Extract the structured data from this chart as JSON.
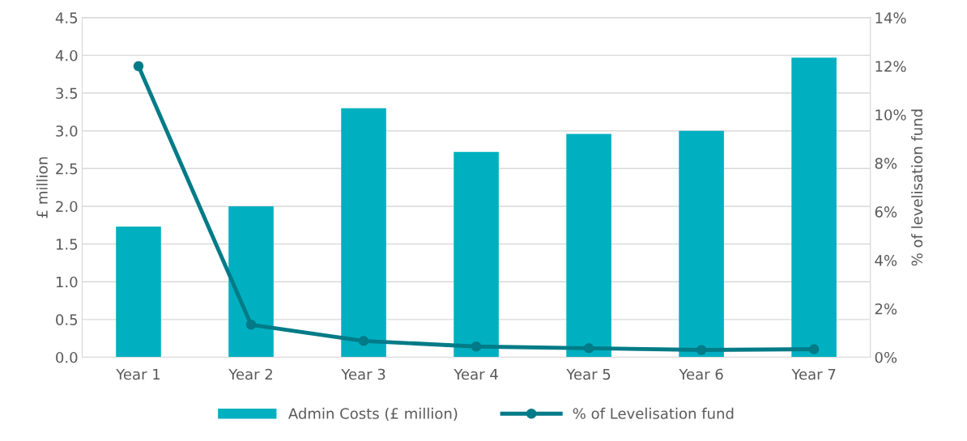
{
  "chart_data": {
    "type": "bar",
    "categories": [
      "Year 1",
      "Year 2",
      "Year 3",
      "Year 4",
      "Year 5",
      "Year 6",
      "Year 7"
    ],
    "ylabel": "£ million",
    "y2label": "% of levelisation fund",
    "ylim": [
      0,
      4.5
    ],
    "yticks": [
      {
        "value": 0,
        "label": "0.0"
      },
      {
        "value": 0.5,
        "label": "0.5"
      },
      {
        "value": 1,
        "label": "1.0"
      },
      {
        "value": 1.5,
        "label": "1.5"
      },
      {
        "value": 2,
        "label": "2.0"
      },
      {
        "value": 2.5,
        "label": "2.5"
      },
      {
        "value": 3,
        "label": "3.0"
      },
      {
        "value": 3.5,
        "label": "3.5"
      },
      {
        "value": 4,
        "label": "4.0"
      },
      {
        "value": 4.5,
        "label": "4.5"
      }
    ],
    "y2lim": [
      0,
      14
    ],
    "y2ticks": [
      {
        "value": 0,
        "label": "0%"
      },
      {
        "value": 2,
        "label": "2%"
      },
      {
        "value": 4,
        "label": "4%"
      },
      {
        "value": 6,
        "label": "6%"
      },
      {
        "value": 8,
        "label": "8%"
      },
      {
        "value": 10,
        "label": "10%"
      },
      {
        "value": 12,
        "label": "12%"
      },
      {
        "value": 14,
        "label": "14%"
      }
    ],
    "grid": "y",
    "legend": "bottom",
    "series": [
      {
        "name": "Admin Costs (£ million)",
        "color": "#00b0c0",
        "values": [
          1.73,
          2.0,
          3.3,
          2.72,
          2.96,
          3.0,
          3.97
        ]
      },
      {
        "name": "% of Levelisation fund",
        "type": "line",
        "axis": "y2",
        "color": "#007b87",
        "marker": "circle",
        "line_style": "solid",
        "values": [
          12.0,
          1.34,
          0.67,
          0.44,
          0.37,
          0.3,
          0.33
        ]
      }
    ]
  }
}
